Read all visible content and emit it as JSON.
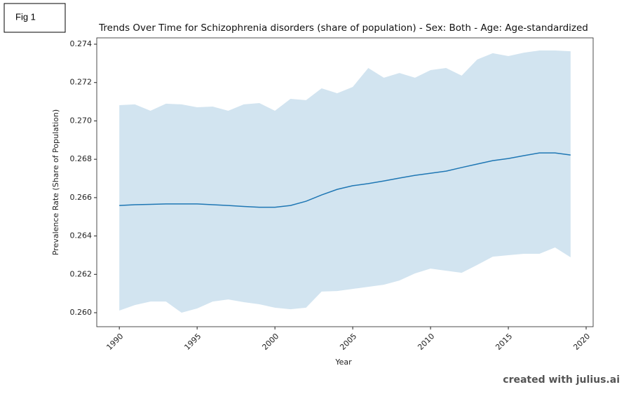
{
  "chart_data": {
    "type": "line",
    "figure_label": "Fig 1",
    "title": "Trends Over Time for Schizophrenia disorders (share of population) - Sex: Both - Age: Age-standardized",
    "xlabel": "Year",
    "ylabel": "Prevalence Rate (Share of Population)",
    "watermark": "created with julius.ai",
    "x": [
      1990,
      1991,
      1992,
      1993,
      1994,
      1995,
      1996,
      1997,
      1998,
      1999,
      2000,
      2001,
      2002,
      2003,
      2004,
      2005,
      2006,
      2007,
      2008,
      2009,
      2010,
      2011,
      2012,
      2013,
      2014,
      2015,
      2016,
      2017,
      2018,
      2019
    ],
    "series": [
      {
        "color": "#1f77b4",
        "band_opacity": 0.2,
        "values": [
          0.26559,
          0.26563,
          0.26565,
          0.26567,
          0.26567,
          0.26567,
          0.26563,
          0.26559,
          0.26554,
          0.2655,
          0.2655,
          0.26559,
          0.26581,
          0.26614,
          0.26643,
          0.26662,
          0.26673,
          0.26687,
          0.26702,
          0.26716,
          0.26727,
          0.26738,
          0.26757,
          0.26775,
          0.26793,
          0.26804,
          0.26819,
          0.26833,
          0.26833,
          0.26822
        ],
        "upper": [
          0.27082,
          0.27086,
          0.27053,
          0.2709,
          0.27086,
          0.27071,
          0.27075,
          0.27053,
          0.27086,
          0.27093,
          0.27053,
          0.27115,
          0.27108,
          0.2717,
          0.27144,
          0.27177,
          0.27276,
          0.27225,
          0.2725,
          0.27225,
          0.27265,
          0.27276,
          0.27236,
          0.2732,
          0.27353,
          0.27338,
          0.27356,
          0.27367,
          0.27367,
          0.27363
        ],
        "lower": [
          0.26011,
          0.2604,
          0.26058,
          0.26058,
          0.26,
          0.26022,
          0.26058,
          0.26069,
          0.26055,
          0.26044,
          0.26026,
          0.26018,
          0.26026,
          0.2611,
          0.26113,
          0.26124,
          0.26135,
          0.26146,
          0.26168,
          0.26205,
          0.2623,
          0.26219,
          0.26208,
          0.26249,
          0.26292,
          0.263,
          0.26307,
          0.26307,
          0.2634,
          0.26289
        ]
      }
    ],
    "xlim": [
      1988.55,
      2020.45
    ],
    "xticks": [
      1990,
      1995,
      2000,
      2005,
      2010,
      2015,
      2020
    ],
    "ylim": [
      0.25927,
      0.27433
    ],
    "yticks": [
      {
        "value": 0.26,
        "label": "0.260"
      },
      {
        "value": 0.262,
        "label": "0.262"
      },
      {
        "value": 0.264,
        "label": "0.264"
      },
      {
        "value": 0.266,
        "label": "0.266"
      },
      {
        "value": 0.268,
        "label": "0.268"
      },
      {
        "value": 0.27,
        "label": "0.270"
      },
      {
        "value": 0.272,
        "label": "0.272"
      },
      {
        "value": 0.274,
        "label": "0.274"
      }
    ],
    "grid": false
  }
}
